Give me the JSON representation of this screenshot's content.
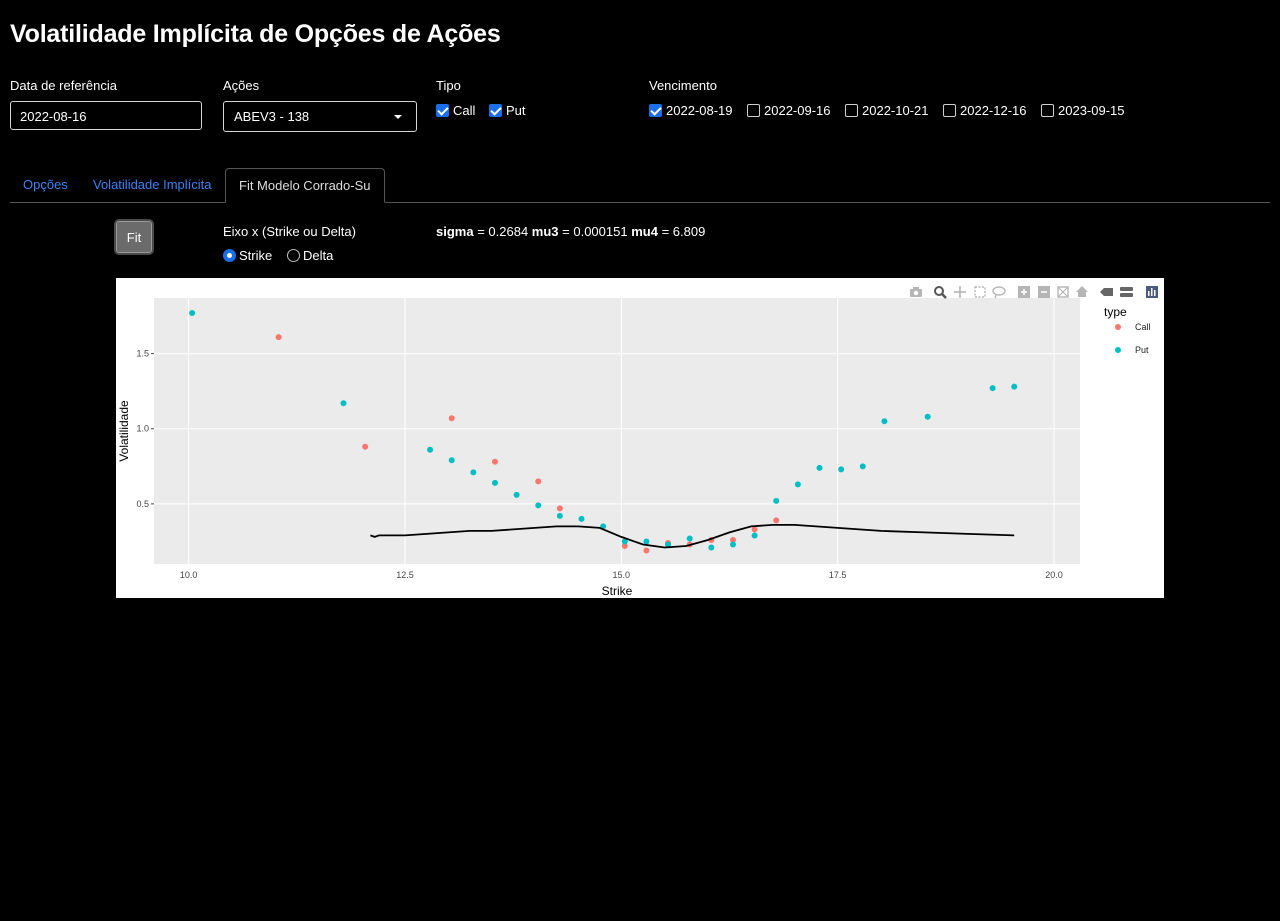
{
  "page_title": "Volatilidade Implícita de Opções de Ações",
  "controls": {
    "date_label": "Data de referência",
    "date_value": "2022-08-16",
    "stock_label": "Ações",
    "stock_value": "ABEV3 - 138",
    "type_label": "Tipo",
    "types": [
      {
        "label": "Call",
        "checked": true
      },
      {
        "label": "Put",
        "checked": true
      }
    ],
    "maturity_label": "Vencimento",
    "maturities": [
      {
        "label": "2022-08-19",
        "checked": true
      },
      {
        "label": "2022-09-16",
        "checked": false
      },
      {
        "label": "2022-10-21",
        "checked": false
      },
      {
        "label": "2022-12-16",
        "checked": false
      },
      {
        "label": "2023-09-15",
        "checked": false
      }
    ]
  },
  "tabs": [
    "Opções",
    "Volatilidade Implícita",
    "Fit Modelo Corrado-Su"
  ],
  "active_tab": "Fit Modelo Corrado-Su",
  "fit": {
    "button_label": "Fit",
    "axis_label": "Eixo x (Strike ou Delta)",
    "axis_options": [
      {
        "label": "Strike",
        "selected": true
      },
      {
        "label": "Delta",
        "selected": false
      }
    ],
    "params": {
      "sigma_name": "sigma",
      "sigma": "0.2684",
      "mu3_name": "mu3",
      "mu3": "0.000151",
      "mu4_name": "mu4",
      "mu4": "6.809"
    }
  },
  "colors": {
    "call": "#F8766D",
    "put": "#00BFC4",
    "accent": "#1a6fe8",
    "link": "#3b82f6",
    "panel": "#EBEBEB"
  },
  "modebar_icons": [
    "camera-icon",
    "zoom-icon",
    "pan-icon",
    "box-select-icon",
    "lasso-icon",
    "zoom-in-icon",
    "zoom-out-icon",
    "autoscale-icon",
    "home-icon",
    "spike-icon",
    "compare-icon",
    "plotly-logo-icon"
  ],
  "chart_data": {
    "type": "scatter",
    "xlabel": "Strike",
    "ylabel": "Volatilidade",
    "xlim": [
      9.6,
      20.3
    ],
    "ylim": [
      0.1,
      1.87
    ],
    "xticks": [
      10.0,
      12.5,
      15.0,
      17.5,
      20.0
    ],
    "xtick_labels": [
      "10.0",
      "12.5",
      "15.0",
      "17.5",
      "20.0"
    ],
    "yticks": [
      0.5,
      1.0,
      1.5
    ],
    "ytick_labels": [
      "0.5",
      "1.0",
      "1.5"
    ],
    "grid": true,
    "legend_title": "type",
    "legend_position": "right",
    "series": [
      {
        "name": "Call",
        "color": "#F8766D",
        "points": [
          [
            11.04,
            1.61
          ],
          [
            12.04,
            0.88
          ],
          [
            13.04,
            1.07
          ],
          [
            13.54,
            0.78
          ],
          [
            14.04,
            0.65
          ],
          [
            14.29,
            0.47
          ],
          [
            15.04,
            0.22
          ],
          [
            15.29,
            0.19
          ],
          [
            15.54,
            0.24
          ],
          [
            15.79,
            0.23
          ],
          [
            16.04,
            0.26
          ],
          [
            16.29,
            0.26
          ],
          [
            16.54,
            0.33
          ],
          [
            16.79,
            0.39
          ]
        ]
      },
      {
        "name": "Put",
        "color": "#00BFC4",
        "points": [
          [
            10.04,
            1.77
          ],
          [
            11.79,
            1.17
          ],
          [
            12.79,
            0.86
          ],
          [
            13.04,
            0.79
          ],
          [
            13.29,
            0.71
          ],
          [
            13.54,
            0.64
          ],
          [
            13.79,
            0.56
          ],
          [
            14.04,
            0.49
          ],
          [
            14.29,
            0.42
          ],
          [
            14.54,
            0.4
          ],
          [
            14.79,
            0.35
          ],
          [
            15.04,
            0.25
          ],
          [
            15.29,
            0.25
          ],
          [
            15.54,
            0.23
          ],
          [
            15.79,
            0.27
          ],
          [
            16.04,
            0.21
          ],
          [
            16.29,
            0.23
          ],
          [
            16.54,
            0.29
          ],
          [
            16.79,
            0.52
          ],
          [
            17.04,
            0.63
          ],
          [
            17.29,
            0.74
          ],
          [
            17.54,
            0.73
          ],
          [
            17.79,
            0.75
          ],
          [
            18.04,
            1.05
          ],
          [
            18.54,
            1.08
          ],
          [
            19.29,
            1.27
          ],
          [
            19.54,
            1.28
          ]
        ]
      },
      {
        "name": "fit",
        "color": "#000000",
        "line": true,
        "points": [
          [
            12.1,
            0.29
          ],
          [
            12.15,
            0.28
          ],
          [
            12.2,
            0.29
          ],
          [
            12.5,
            0.29
          ],
          [
            12.75,
            0.3
          ],
          [
            13.0,
            0.31
          ],
          [
            13.25,
            0.32
          ],
          [
            13.5,
            0.32
          ],
          [
            13.75,
            0.33
          ],
          [
            14.0,
            0.34
          ],
          [
            14.25,
            0.35
          ],
          [
            14.5,
            0.35
          ],
          [
            14.75,
            0.34
          ],
          [
            15.0,
            0.28
          ],
          [
            15.25,
            0.23
          ],
          [
            15.5,
            0.21
          ],
          [
            15.75,
            0.22
          ],
          [
            16.0,
            0.26
          ],
          [
            16.25,
            0.31
          ],
          [
            16.5,
            0.35
          ],
          [
            16.75,
            0.36
          ],
          [
            17.0,
            0.36
          ],
          [
            17.25,
            0.35
          ],
          [
            17.5,
            0.34
          ],
          [
            17.75,
            0.33
          ],
          [
            18.0,
            0.32
          ],
          [
            18.5,
            0.31
          ],
          [
            19.0,
            0.3
          ],
          [
            19.54,
            0.29
          ]
        ]
      }
    ]
  }
}
